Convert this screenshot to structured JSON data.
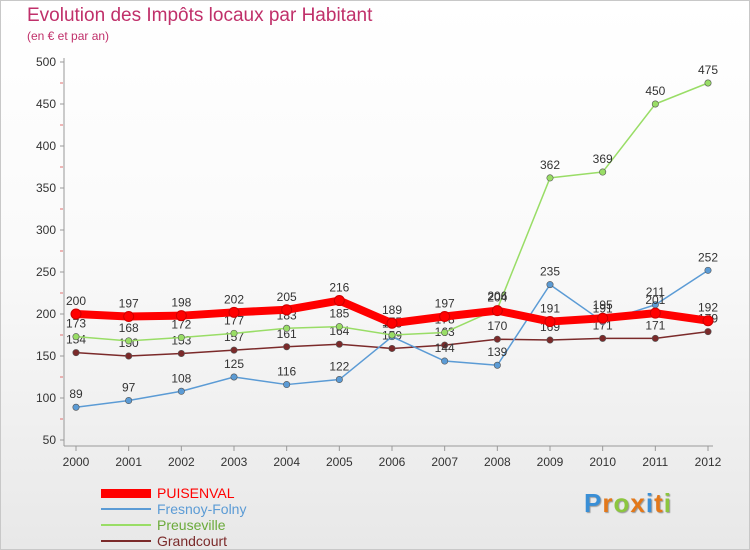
{
  "title": "Evolution des Impôts locaux par Habitant",
  "subtitle": "(en € et par an)",
  "logo": {
    "letters": [
      "P",
      "r",
      "o",
      "x",
      "i",
      "t",
      "i"
    ],
    "colors": [
      "#3a8fd6",
      "#e3781a",
      "#8cc63f",
      "#e3781a",
      "#3a8fd6",
      "#e3781a",
      "#8cc63f"
    ]
  },
  "chart_data": {
    "type": "line",
    "title": "Evolution des Impôts locaux par Habitant",
    "subtitle": "(en € et par an)",
    "xlabel": "",
    "ylabel": "",
    "ylim": [
      50,
      500
    ],
    "yticks": [
      50,
      100,
      150,
      200,
      250,
      300,
      350,
      400,
      450,
      500
    ],
    "grid": false,
    "legend_position": "bottom-left",
    "categories": [
      "2000",
      "2001",
      "2002",
      "2003",
      "2004",
      "2005",
      "2006",
      "2007",
      "2008",
      "2009",
      "2010",
      "2011",
      "2012"
    ],
    "series": [
      {
        "name": "Grandcourt",
        "color": "#7b2a2a",
        "values": [
          154,
          150,
          153,
          157,
          161,
          164,
          159,
          163,
          170,
          169,
          171,
          171,
          179
        ]
      },
      {
        "name": "Fresnoy-Folny",
        "color": "#5b9bd5",
        "values": [
          89,
          97,
          108,
          125,
          116,
          122,
          173,
          144,
          139,
          235,
          191,
          211,
          252
        ]
      },
      {
        "name": "Preuseville",
        "color": "#99dd66",
        "values": [
          173,
          168,
          172,
          177,
          183,
          185,
          175,
          178,
          206,
          362,
          369,
          450,
          475
        ]
      },
      {
        "name": "PUISENVAL",
        "color": "#ff0000",
        "values": [
          200,
          197,
          198,
          202,
          205,
          216,
          189,
          197,
          204,
          191,
          195,
          201,
          192
        ]
      }
    ]
  }
}
